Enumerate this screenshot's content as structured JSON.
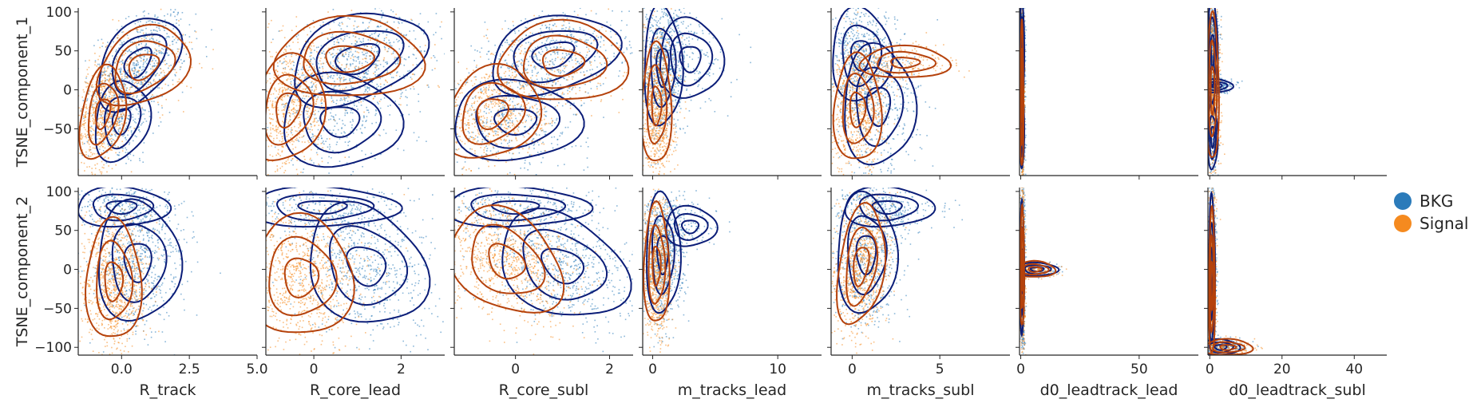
{
  "chart_data": {
    "type": "scatter",
    "kind": "pairgrid scatter with kde contour overlay",
    "grid": false,
    "legend_position": "right",
    "legend": [
      {
        "label": "BKG",
        "color": "#2b7bba"
      },
      {
        "label": "Signal",
        "color": "#f58a1f"
      }
    ],
    "contour_colors": {
      "BKG": "#0b1d78",
      "Signal": "#b5420c"
    },
    "y_vars": [
      {
        "label": "TSNE_component_1",
        "ylim": [
          -110,
          105
        ],
        "ticks": [
          100,
          50,
          0,
          -50
        ],
        "tick_labels": [
          "100",
          "50",
          "0",
          "−50"
        ]
      },
      {
        "label": "TSNE_component_2",
        "ylim": [
          -110,
          105
        ],
        "ticks": [
          100,
          50,
          0,
          -50,
          -100
        ],
        "tick_labels": [
          "100",
          "50",
          "0",
          "−50",
          "−100"
        ]
      }
    ],
    "x_vars": [
      {
        "label": "R_track",
        "xlim": [
          -1.6,
          5.0
        ],
        "ticks": [
          0.0,
          2.5,
          5.0
        ],
        "tick_labels": [
          "0.0",
          "2.5",
          "5.0"
        ]
      },
      {
        "label": "R_core_lead",
        "xlim": [
          -1.1,
          3.0
        ],
        "ticks": [
          0,
          2
        ],
        "tick_labels": [
          "0",
          "2"
        ]
      },
      {
        "label": "R_core_subl",
        "xlim": [
          -1.3,
          2.5
        ],
        "ticks": [
          0,
          2
        ],
        "tick_labels": [
          "0",
          "2"
        ]
      },
      {
        "label": "m_tracks_lead",
        "xlim": [
          -0.8,
          13.5
        ],
        "ticks": [
          0,
          10
        ],
        "tick_labels": [
          "0",
          "10"
        ]
      },
      {
        "label": "m_tracks_subl",
        "xlim": [
          -1.2,
          9.0
        ],
        "ticks": [
          0,
          5
        ],
        "tick_labels": [
          "0",
          "5"
        ]
      },
      {
        "label": "d0_leadtrack_lead",
        "xlim": [
          -0.5,
          75
        ],
        "ticks": [
          0,
          50
        ],
        "tick_labels": [
          "0",
          "50"
        ]
      },
      {
        "label": "d0_leadtrack_subl",
        "xlim": [
          -0.5,
          49
        ],
        "ticks": [
          0,
          20,
          40
        ],
        "tick_labels": [
          "0",
          "20",
          "40"
        ]
      }
    ],
    "series": [
      {
        "name": "BKG",
        "clouds": [
          [
            {
              "x": 0.6,
              "y": 35,
              "sx": 0.9,
              "sy": 35,
              "r": 0.45,
              "w": 0.7
            },
            {
              "x": 0.0,
              "y": -40,
              "sx": 0.6,
              "sy": 30,
              "r": 0.2,
              "w": 0.3
            }
          ],
          [
            {
              "x": 1.0,
              "y": 40,
              "sx": 0.9,
              "sy": 35,
              "r": 0.35,
              "w": 0.7
            },
            {
              "x": 0.6,
              "y": -40,
              "sx": 0.8,
              "sy": 35,
              "r": 0.0,
              "w": 0.3
            }
          ],
          [
            {
              "x": 0.8,
              "y": 45,
              "sx": 0.8,
              "sy": 30,
              "r": 0.3,
              "w": 0.6
            },
            {
              "x": 0.0,
              "y": -40,
              "sx": 0.8,
              "sy": 30,
              "r": 0.0,
              "w": 0.4
            }
          ],
          [
            {
              "x": 0.8,
              "y": 30,
              "sx": 0.9,
              "sy": 45,
              "r": 0.0,
              "w": 0.8
            },
            {
              "x": 3.0,
              "y": 40,
              "sx": 1.5,
              "sy": 30,
              "r": 0.0,
              "w": 0.2
            }
          ],
          [
            {
              "x": 0.5,
              "y": 45,
              "sx": 1.0,
              "sy": 35,
              "r": 0.0,
              "w": 0.6
            },
            {
              "x": 1.5,
              "y": -20,
              "sx": 1.2,
              "sy": 45,
              "r": 0.0,
              "w": 0.4
            }
          ],
          [
            {
              "x": 0.6,
              "y": 50,
              "sx": 0.5,
              "sy": 40,
              "r": 0.0,
              "w": 0.7
            },
            {
              "x": 0.6,
              "y": -50,
              "sx": 0.5,
              "sy": 30,
              "r": 0.0,
              "w": 0.3
            }
          ],
          [
            {
              "x": 0.8,
              "y": 50,
              "sx": 0.8,
              "sy": 40,
              "r": 0.0,
              "w": 0.6
            },
            {
              "x": 2.0,
              "y": 5,
              "sx": 2.5,
              "sy": 5,
              "r": 0.0,
              "w": 0.2
            },
            {
              "x": 0.8,
              "y": -60,
              "sx": 0.8,
              "sy": 25,
              "r": 0.0,
              "w": 0.2
            }
          ],
          [
            {
              "x": 0.6,
              "y": 10,
              "sx": 0.9,
              "sy": 45,
              "r": 0.0,
              "w": 0.7
            },
            {
              "x": 0.0,
              "y": 80,
              "sx": 1.0,
              "sy": 15,
              "r": 0.0,
              "w": 0.3
            }
          ],
          [
            {
              "x": 1.2,
              "y": 5,
              "sx": 0.8,
              "sy": 45,
              "r": -0.2,
              "w": 0.7
            },
            {
              "x": 0.2,
              "y": 80,
              "sx": 1.0,
              "sy": 15,
              "r": 0.0,
              "w": 0.3
            }
          ],
          [
            {
              "x": 1.0,
              "y": 5,
              "sx": 0.8,
              "sy": 40,
              "r": -0.3,
              "w": 0.7
            },
            {
              "x": 0.0,
              "y": 80,
              "sx": 0.9,
              "sy": 15,
              "r": 0.0,
              "w": 0.3
            }
          ],
          [
            {
              "x": 0.8,
              "y": 20,
              "sx": 0.8,
              "sy": 45,
              "r": 0.0,
              "w": 0.9
            },
            {
              "x": 3.0,
              "y": 55,
              "sx": 1.2,
              "sy": 15,
              "r": 0.0,
              "w": 0.1
            }
          ],
          [
            {
              "x": 0.8,
              "y": 20,
              "sx": 1.0,
              "sy": 45,
              "r": 0.0,
              "w": 0.7
            },
            {
              "x": 2.0,
              "y": 80,
              "sx": 1.5,
              "sy": 15,
              "r": 0.0,
              "w": 0.3
            }
          ],
          [
            {
              "x": 0.6,
              "y": 0,
              "sx": 0.5,
              "sy": 50,
              "r": 0.0,
              "w": 0.9
            },
            {
              "x": 7.0,
              "y": 0,
              "sx": 5.0,
              "sy": 5,
              "r": 0.0,
              "w": 0.1
            }
          ],
          [
            {
              "x": 0.6,
              "y": 0,
              "sx": 0.5,
              "sy": 55,
              "r": 0.0,
              "w": 0.8
            },
            {
              "x": 3.0,
              "y": -100,
              "sx": 3.0,
              "sy": 6,
              "r": 0.0,
              "w": 0.2
            }
          ]
        ]
      },
      {
        "name": "Signal",
        "clouds": [
          [
            {
              "x": -0.7,
              "y": -30,
              "sx": 0.5,
              "sy": 35,
              "r": 0.3,
              "w": 0.8
            },
            {
              "x": 0.8,
              "y": 30,
              "sx": 1.0,
              "sy": 30,
              "r": 0.3,
              "w": 0.2
            }
          ],
          [
            {
              "x": -0.6,
              "y": -25,
              "sx": 0.5,
              "sy": 40,
              "r": 0.2,
              "w": 0.8
            },
            {
              "x": 0.8,
              "y": 40,
              "sx": 1.0,
              "sy": 30,
              "r": 0.0,
              "w": 0.2
            }
          ],
          [
            {
              "x": -0.5,
              "y": -30,
              "sx": 0.6,
              "sy": 35,
              "r": 0.2,
              "w": 0.8
            },
            {
              "x": 1.0,
              "y": 35,
              "sx": 0.8,
              "sy": 30,
              "r": 0.0,
              "w": 0.2
            }
          ],
          [
            {
              "x": 0.3,
              "y": -20,
              "sx": 0.7,
              "sy": 45,
              "r": 0.0,
              "w": 1.0
            }
          ],
          [
            {
              "x": 0.3,
              "y": -25,
              "sx": 0.8,
              "sy": 40,
              "r": 0.0,
              "w": 0.8
            },
            {
              "x": 3.0,
              "y": 35,
              "sx": 1.5,
              "sy": 12,
              "r": 0.0,
              "w": 0.2
            }
          ],
          [
            {
              "x": 0.5,
              "y": -10,
              "sx": 0.4,
              "sy": 55,
              "r": 0.0,
              "w": 1.0
            }
          ],
          [
            {
              "x": 0.8,
              "y": 0,
              "sx": 1.0,
              "sy": 55,
              "r": 0.0,
              "w": 1.0
            }
          ],
          [
            {
              "x": -0.3,
              "y": -15,
              "sx": 0.6,
              "sy": 45,
              "r": 0.0,
              "w": 1.0
            }
          ],
          [
            {
              "x": -0.3,
              "y": -10,
              "sx": 0.7,
              "sy": 45,
              "r": 0.0,
              "w": 1.0
            }
          ],
          [
            {
              "x": -0.2,
              "y": 10,
              "sx": 0.7,
              "sy": 40,
              "r": -0.3,
              "w": 1.0
            }
          ],
          [
            {
              "x": 0.3,
              "y": 5,
              "sx": 0.6,
              "sy": 45,
              "r": 0.0,
              "w": 1.0
            }
          ],
          [
            {
              "x": 0.5,
              "y": 5,
              "sx": 0.8,
              "sy": 45,
              "r": 0.3,
              "w": 1.0
            }
          ],
          [
            {
              "x": 0.6,
              "y": 0,
              "sx": 0.5,
              "sy": 45,
              "r": 0.0,
              "w": 0.85
            },
            {
              "x": 6.0,
              "y": 0,
              "sx": 5.0,
              "sy": 6,
              "r": 0.0,
              "w": 0.15
            }
          ],
          [
            {
              "x": 0.6,
              "y": -20,
              "sx": 0.5,
              "sy": 55,
              "r": 0.0,
              "w": 0.8
            },
            {
              "x": 5.0,
              "y": -100,
              "sx": 4.0,
              "sy": 6,
              "r": 0.0,
              "w": 0.2
            }
          ]
        ]
      }
    ]
  }
}
